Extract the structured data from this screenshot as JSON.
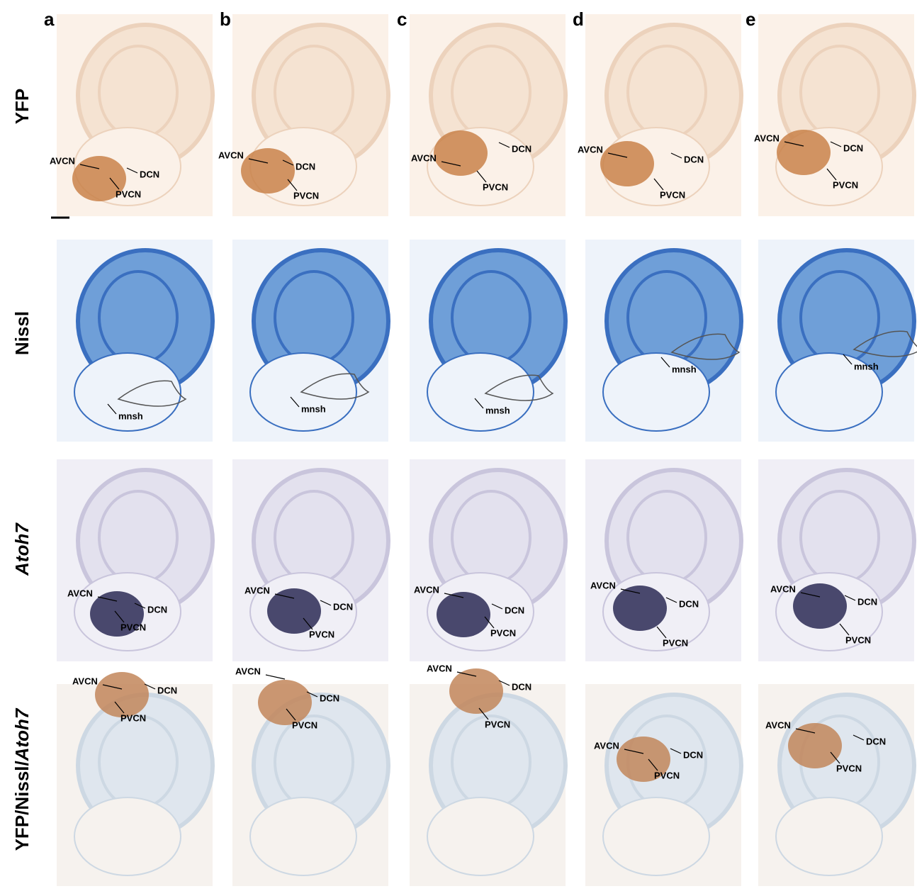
{
  "columns": [
    "a",
    "b",
    "c",
    "d",
    "e"
  ],
  "rows": [
    {
      "label": [
        {
          "text": "YFP",
          "italic": false
        }
      ],
      "panels": [
        {
          "labels": [
            "AVCN",
            "DCN",
            "PVCN"
          ]
        },
        {
          "labels": [
            "AVCN",
            "DCN",
            "PVCN"
          ]
        },
        {
          "labels": [
            "AVCN",
            "DCN",
            "PVCN"
          ]
        },
        {
          "labels": [
            "AVCN",
            "DCN",
            "PVCN"
          ]
        },
        {
          "labels": [
            "AVCN",
            "DCN",
            "PVCN"
          ]
        }
      ]
    },
    {
      "label": [
        {
          "text": "Nissl",
          "italic": false
        }
      ],
      "panels": [
        {
          "labels": [
            "mnsh"
          ]
        },
        {
          "labels": [
            "mnsh"
          ]
        },
        {
          "labels": [
            "mnsh"
          ]
        },
        {
          "labels": [
            "mnsh"
          ]
        },
        {
          "labels": [
            "mnsh"
          ]
        }
      ]
    },
    {
      "label": [
        {
          "text": "Atoh7",
          "italic": true
        }
      ],
      "panels": [
        {
          "labels": [
            "AVCN",
            "DCN",
            "PVCN"
          ]
        },
        {
          "labels": [
            "AVCN",
            "DCN",
            "PVCN"
          ]
        },
        {
          "labels": [
            "AVCN",
            "DCN",
            "PVCN"
          ]
        },
        {
          "labels": [
            "AVCN",
            "DCN",
            "PVCN"
          ]
        },
        {
          "labels": [
            "AVCN",
            "DCN",
            "PVCN"
          ]
        }
      ]
    },
    {
      "label": [
        {
          "text": "YFP/Nissl/",
          "italic": false
        },
        {
          "text": "Atoh7",
          "italic": true
        }
      ],
      "panels": [
        {
          "labels": [
            "AVCN",
            "DCN",
            "PVCN"
          ]
        },
        {
          "labels": [
            "AVCN",
            "DCN",
            "PVCN"
          ]
        },
        {
          "labels": [
            "AVCN",
            "DCN",
            "PVCN"
          ]
        },
        {
          "labels": [
            "AVCN",
            "DCN",
            "PVCN"
          ]
        },
        {
          "labels": [
            "AVCN",
            "DCN",
            "PVCN"
          ]
        }
      ]
    }
  ]
}
